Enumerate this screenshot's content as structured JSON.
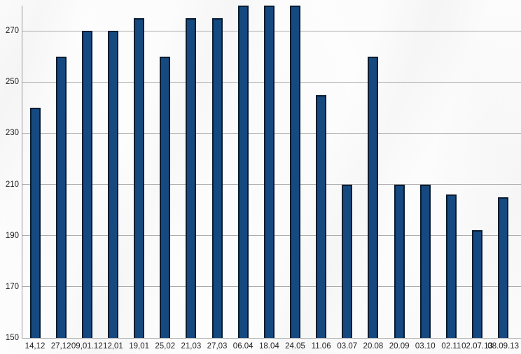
{
  "chart_data": {
    "type": "bar",
    "title": "",
    "xlabel": "",
    "ylabel": "",
    "categories": [
      "14,12",
      "27,12",
      "09,01.12",
      "12,01",
      "19,01",
      "25,02",
      "21,03",
      "27,03",
      "06.04",
      "18.04",
      "24.05",
      "11.06",
      "03.07",
      "20.08",
      "20.09",
      "03.10",
      "02.11",
      "02.07.13",
      "08.09.13"
    ],
    "values": [
      240,
      260,
      270,
      270,
      275,
      260,
      275,
      275,
      280,
      280,
      280,
      245,
      210,
      260,
      210,
      210,
      206,
      192,
      205
    ],
    "ylim": [
      150,
      280
    ],
    "y_ticks": [
      150,
      170,
      190,
      210,
      230,
      250,
      270
    ],
    "grid": true,
    "legend": "none",
    "series_name": "",
    "colors": {
      "bar_fill": "#15497F",
      "bar_border": "#0A1C30",
      "gridline": "#ABABAB",
      "axis": "#989898",
      "tick_text": "#1F1F1F"
    }
  }
}
